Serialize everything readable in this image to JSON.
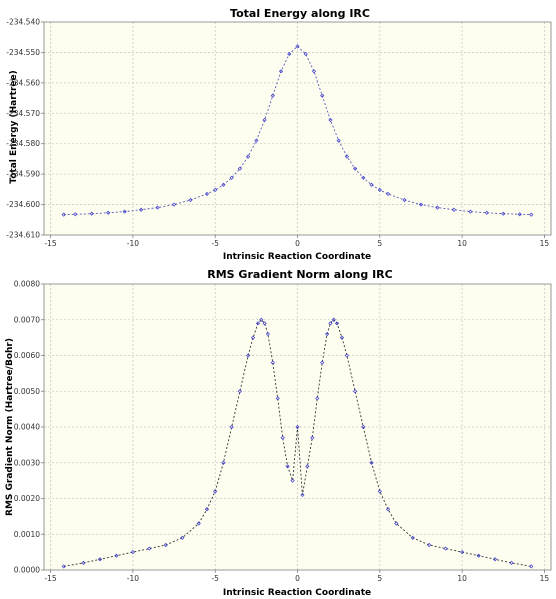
{
  "chart_data": [
    {
      "type": "line",
      "title": "Total Energy along IRC",
      "xlabel": "Intrinsic Reaction Coordinate",
      "ylabel": "Total Energy (Hartree)",
      "xlim": [
        -15.4,
        15.4
      ],
      "ylim": [
        -234.61,
        -234.54
      ],
      "xticks": [
        -15,
        -10,
        -5,
        0,
        5,
        10,
        15
      ],
      "yticks": [
        -234.61,
        -234.6,
        -234.59,
        -234.58,
        -234.57,
        -234.56,
        -234.55,
        -234.54
      ],
      "xtick_labels": [
        "-15",
        "-10",
        "-5",
        "0",
        "5",
        "10",
        "15"
      ],
      "ytick_labels": [
        "-234.610",
        "-234.600",
        "-234.590",
        "-234.580",
        "-234.570",
        "-234.560",
        "-234.550",
        "-234.540"
      ],
      "grid": true,
      "line_color": "#5a5ab8",
      "marker_color": "#3a3ad0",
      "series": [
        {
          "x": [
            -14.2,
            -13.5,
            -12.5,
            -11.5,
            -10.5,
            -9.5,
            -8.5,
            -7.5,
            -6.5,
            -5.5,
            -5.0,
            -4.5,
            -4.0,
            -3.5,
            -3.0,
            -2.5,
            -2.0,
            -1.5,
            -1.0,
            -0.5,
            0.0,
            0.5,
            1.0,
            1.5,
            2.0,
            2.5,
            3.0,
            3.5,
            4.0,
            4.5,
            5.0,
            5.5,
            6.5,
            7.5,
            8.5,
            9.5,
            10.5,
            11.5,
            12.5,
            13.5,
            14.2
          ],
          "values": [
            -234.6033,
            -234.6032,
            -234.603,
            -234.6027,
            -234.6023,
            -234.6017,
            -234.601,
            -234.6,
            -234.5985,
            -234.5965,
            -234.5952,
            -234.5935,
            -234.5912,
            -234.5882,
            -234.5842,
            -234.579,
            -234.5722,
            -234.5642,
            -234.5562,
            -234.5505,
            -234.548,
            -234.5505,
            -234.5562,
            -234.5642,
            -234.5722,
            -234.579,
            -234.5842,
            -234.5882,
            -234.5912,
            -234.5935,
            -234.5952,
            -234.5965,
            -234.5985,
            -234.6,
            -234.601,
            -234.6017,
            -234.6023,
            -234.6027,
            -234.603,
            -234.6032,
            -234.6033
          ]
        }
      ]
    },
    {
      "type": "line",
      "title": "RMS Gradient Norm along IRC",
      "xlabel": "Intrinsic Reaction Coordinate",
      "ylabel": "RMS Gradient Norm (Hartree/Bohr)",
      "xlim": [
        -15.4,
        15.4
      ],
      "ylim": [
        0.0,
        0.008
      ],
      "xticks": [
        -15,
        -10,
        -5,
        0,
        5,
        10,
        15
      ],
      "yticks": [
        0,
        0.001,
        0.002,
        0.003,
        0.004,
        0.005,
        0.006,
        0.007,
        0.008
      ],
      "xtick_labels": [
        "-15",
        "-10",
        "-5",
        "0",
        "5",
        "10",
        "15"
      ],
      "ytick_labels": [
        "0.0000",
        "0.0010",
        "0.0020",
        "0.0030",
        "0.0040",
        "0.0050",
        "0.0060",
        "0.0070",
        "0.0080"
      ],
      "grid": true,
      "line_color": "#333333",
      "marker_color": "#3a3ad0",
      "series": [
        {
          "x": [
            -14.2,
            -13.0,
            -12.0,
            -11.0,
            -10.0,
            -9.0,
            -8.0,
            -7.0,
            -6.0,
            -5.5,
            -5.0,
            -4.5,
            -4.0,
            -3.5,
            -3.0,
            -2.7,
            -2.4,
            -2.2,
            -2.0,
            -1.8,
            -1.5,
            -1.2,
            -0.9,
            -0.6,
            -0.3,
            0.0,
            0.3,
            0.6,
            0.9,
            1.2,
            1.5,
            1.8,
            2.0,
            2.2,
            2.4,
            2.7,
            3.0,
            3.5,
            4.0,
            4.5,
            5.0,
            5.5,
            6.0,
            7.0,
            8.0,
            9.0,
            10.0,
            11.0,
            12.0,
            13.0,
            14.2
          ],
          "values": [
            0.0001,
            0.0002,
            0.0003,
            0.0004,
            0.0005,
            0.0006,
            0.0007,
            0.0009,
            0.0013,
            0.0017,
            0.0022,
            0.003,
            0.004,
            0.005,
            0.006,
            0.0065,
            0.0069,
            0.007,
            0.0069,
            0.0066,
            0.0058,
            0.0048,
            0.0037,
            0.0029,
            0.0025,
            0.004,
            0.0021,
            0.0029,
            0.0037,
            0.0048,
            0.0058,
            0.0066,
            0.0069,
            0.007,
            0.0069,
            0.0065,
            0.006,
            0.005,
            0.004,
            0.003,
            0.0022,
            0.0017,
            0.0013,
            0.0009,
            0.0007,
            0.0006,
            0.0005,
            0.0004,
            0.0003,
            0.0002,
            0.0001
          ]
        }
      ]
    }
  ]
}
